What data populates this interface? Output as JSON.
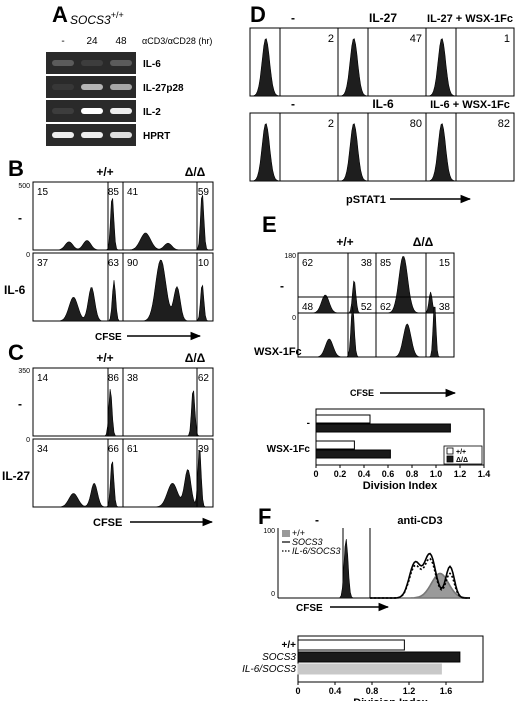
{
  "panel_a": {
    "letter": "A",
    "genotype": "SOCS3",
    "genotype_sup": "+/+",
    "time_labels": [
      "-",
      "24",
      "48"
    ],
    "stim_label": "αCD3/αCD28 (hr)",
    "genes": [
      "IL-6",
      "IL-27p28",
      "IL-2",
      "HPRT"
    ],
    "band_intensity": [
      [
        0.35,
        0.15,
        0.35
      ],
      [
        0.1,
        0.75,
        0.7
      ],
      [
        0.15,
        1.0,
        0.95
      ],
      [
        0.95,
        0.95,
        0.9
      ]
    ]
  },
  "panel_b": {
    "letter": "B",
    "col_labels": [
      "+/+",
      "Δ/Δ"
    ],
    "row_labels": [
      "-",
      "IL-6"
    ],
    "y_tick": "500",
    "y_zero": "0",
    "axis_label": "CFSE",
    "percentages": [
      [
        "15",
        "85",
        "41",
        "59"
      ],
      [
        "37",
        "63",
        "90",
        "10"
      ]
    ]
  },
  "panel_c": {
    "letter": "C",
    "col_labels": [
      "+/+",
      "Δ/Δ"
    ],
    "row_labels": [
      "-",
      "IL-27"
    ],
    "y_tick": "350",
    "y_zero": "0",
    "axis_label": "CFSE",
    "percentages": [
      [
        "14",
        "86",
        "38",
        "62"
      ],
      [
        "34",
        "66",
        "61",
        "39"
      ]
    ]
  },
  "panel_d": {
    "letter": "D",
    "top_labels": [
      "-",
      "IL-27",
      "IL-27 + WSX-1Fc"
    ],
    "top_values": [
      "2",
      "47",
      "1"
    ],
    "bottom_labels": [
      "-",
      "IL-6",
      "IL-6 + WSX-1Fc"
    ],
    "bottom_values": [
      "2",
      "80",
      "82"
    ],
    "axis_label": "pSTAT1"
  },
  "panel_e": {
    "letter": "E",
    "col_labels": [
      "+/+",
      "Δ/Δ"
    ],
    "row_labels": [
      "-",
      "WSX-1Fc"
    ],
    "y_tick": "180",
    "y_zero": "0",
    "axis_label": "CFSE",
    "percentages": [
      [
        "62",
        "38",
        "85",
        "15"
      ],
      [
        "48",
        "52",
        "62",
        "38"
      ]
    ],
    "chart_data": {
      "type": "bar",
      "categories": [
        "-",
        "WSX-1Fc"
      ],
      "series": [
        {
          "name": "+/+",
          "values": [
            0.45,
            0.32
          ]
        },
        {
          "name": "Δ/Δ",
          "values": [
            1.12,
            0.62
          ]
        }
      ],
      "xlabel": "Division Index",
      "xlim": [
        0,
        1.4
      ],
      "xticks": [
        "0",
        "0.2",
        "0.4",
        "0.6",
        "0.8",
        "1.0",
        "1.2",
        "1.4"
      ],
      "legend_placement": "bottom-right",
      "colors": [
        "#ffffff",
        "#1a1a1a"
      ]
    }
  },
  "panel_f": {
    "letter": "F",
    "condition_labels": [
      "-",
      "anti-CD3"
    ],
    "hist_legend": [
      "+/+",
      "SOCS3",
      "IL-6/SOCS3"
    ],
    "y_tick": "100",
    "y_zero": "0",
    "axis_label": "CFSE",
    "chart_data": {
      "type": "bar",
      "categories": [
        "+/+",
        "SOCS3",
        "IL-6/SOCS3"
      ],
      "values": [
        1.15,
        1.75,
        1.55
      ],
      "xlabel": "Division Index",
      "xlim": [
        0,
        2.0
      ],
      "xticks": [
        "0",
        "0.4",
        "0.8",
        "1.2",
        "1.6"
      ],
      "colors": [
        "#ffffff",
        "#1a1a1a",
        "#c8c8c8"
      ]
    }
  }
}
